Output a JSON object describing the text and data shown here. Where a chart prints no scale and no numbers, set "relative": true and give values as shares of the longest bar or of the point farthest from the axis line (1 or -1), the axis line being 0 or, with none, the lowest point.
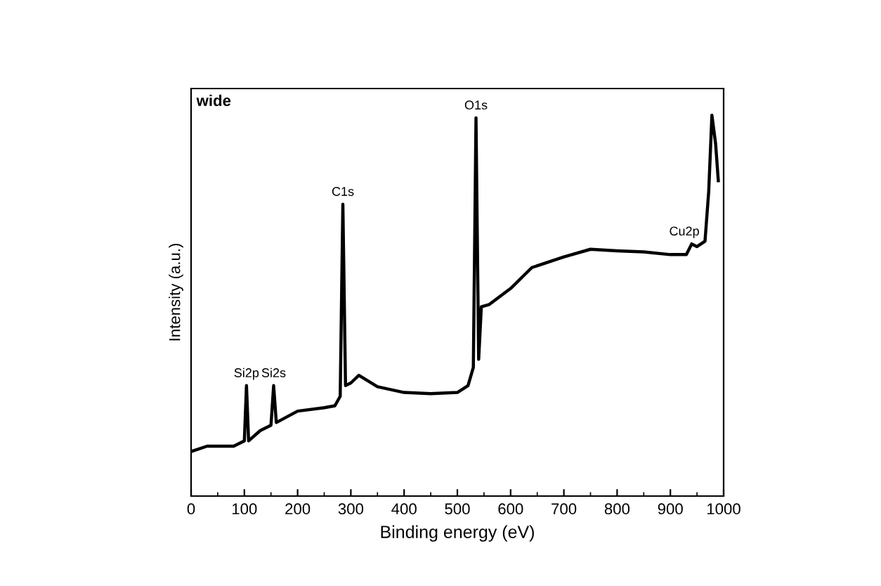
{
  "chart_data": {
    "type": "line",
    "title": "wide",
    "xlabel": "Binding energy (eV)",
    "ylabel": "Intensity (a.u.)",
    "relative": true,
    "color": "#000000",
    "tick_labels": "x",
    "grid": false,
    "legend": false,
    "marker": "none",
    "line_style": "solid",
    "xlim": [
      0,
      1000
    ],
    "xticks": [
      0,
      100,
      200,
      300,
      400,
      500,
      600,
      700,
      800,
      900,
      1000
    ],
    "x": [
      0,
      30,
      80,
      100,
      104,
      108,
      130,
      150,
      155,
      160,
      200,
      250,
      270,
      280,
      285,
      290,
      300,
      315,
      350,
      400,
      450,
      500,
      520,
      530,
      535,
      540,
      545,
      560,
      600,
      640,
      700,
      750,
      800,
      850,
      900,
      930,
      940,
      950,
      965,
      972,
      978,
      985,
      990
    ],
    "values": [
      0.117,
      0.131,
      0.131,
      0.145,
      0.29,
      0.145,
      0.172,
      0.186,
      0.29,
      0.193,
      0.223,
      0.232,
      0.237,
      0.262,
      0.766,
      0.29,
      0.297,
      0.317,
      0.287,
      0.272,
      0.269,
      0.272,
      0.29,
      0.338,
      0.993,
      0.359,
      0.497,
      0.503,
      0.545,
      0.6,
      0.628,
      0.648,
      0.644,
      0.641,
      0.634,
      0.634,
      0.662,
      0.655,
      0.669,
      0.8,
      1.0,
      0.924,
      0.828
    ],
    "annotations": [
      {
        "text": "Si2p",
        "x": 104,
        "y": 0.29
      },
      {
        "text": "Si2s",
        "x": 155,
        "y": 0.29
      },
      {
        "text": "C1s",
        "x": 285,
        "y": 0.766
      },
      {
        "text": "O1s",
        "x": 535,
        "y": 0.993
      },
      {
        "text": "Cu2p",
        "x": 940,
        "y": 0.662
      }
    ]
  }
}
